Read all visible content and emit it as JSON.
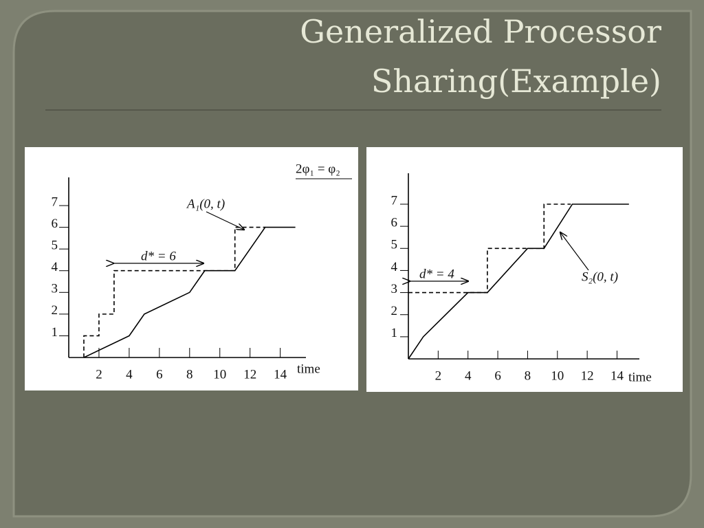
{
  "slide": {
    "title_lines": [
      "Generalized Processor",
      "Sharing(Example)"
    ]
  },
  "chart_data": [
    {
      "type": "line",
      "x_label": "time",
      "annotations": [
        "2φ₁ = φ₂",
        "A₁(0, t)",
        "d* = 6"
      ],
      "series": [
        {
          "x": [
            1,
            1,
            2,
            2,
            3,
            3,
            11,
            11,
            13
          ],
          "values": [
            0,
            1,
            1,
            2,
            2,
            4,
            4,
            6,
            6
          ],
          "color": "#000000",
          "dashed": true
        },
        {
          "x": [
            1,
            4,
            5,
            8,
            9,
            11,
            13,
            15
          ],
          "values": [
            0,
            1,
            2,
            3,
            4,
            4,
            6,
            6
          ],
          "color": "#000000",
          "dashed": false
        }
      ],
      "xlim": [
        0,
        15.7
      ],
      "ylim": [
        0,
        8.3
      ],
      "xticks": [
        2,
        4,
        6,
        8,
        10,
        12,
        14
      ],
      "yticks": [
        1,
        2,
        3,
        4,
        5,
        6,
        7
      ]
    },
    {
      "type": "line",
      "x_label": "time",
      "annotations": [
        "d* = 4",
        "S₂(0, t)"
      ],
      "series": [
        {
          "x": [
            0,
            5.3,
            5.3,
            9.1,
            9.1,
            10.9
          ],
          "values": [
            3,
            3,
            5,
            5,
            7,
            7
          ],
          "color": "#000000",
          "dashed": true
        },
        {
          "x": [
            0,
            1,
            4,
            5.3,
            8,
            9.1,
            11,
            14.8
          ],
          "values": [
            0,
            1,
            3,
            3,
            5,
            5,
            7,
            7
          ],
          "color": "#000000",
          "dashed": false
        }
      ],
      "xlim": [
        0,
        15.5
      ],
      "ylim": [
        0,
        8.4
      ],
      "xticks": [
        2,
        4,
        6,
        8,
        10,
        12,
        14
      ],
      "yticks": [
        1,
        2,
        3,
        4,
        5,
        6,
        7
      ]
    }
  ]
}
